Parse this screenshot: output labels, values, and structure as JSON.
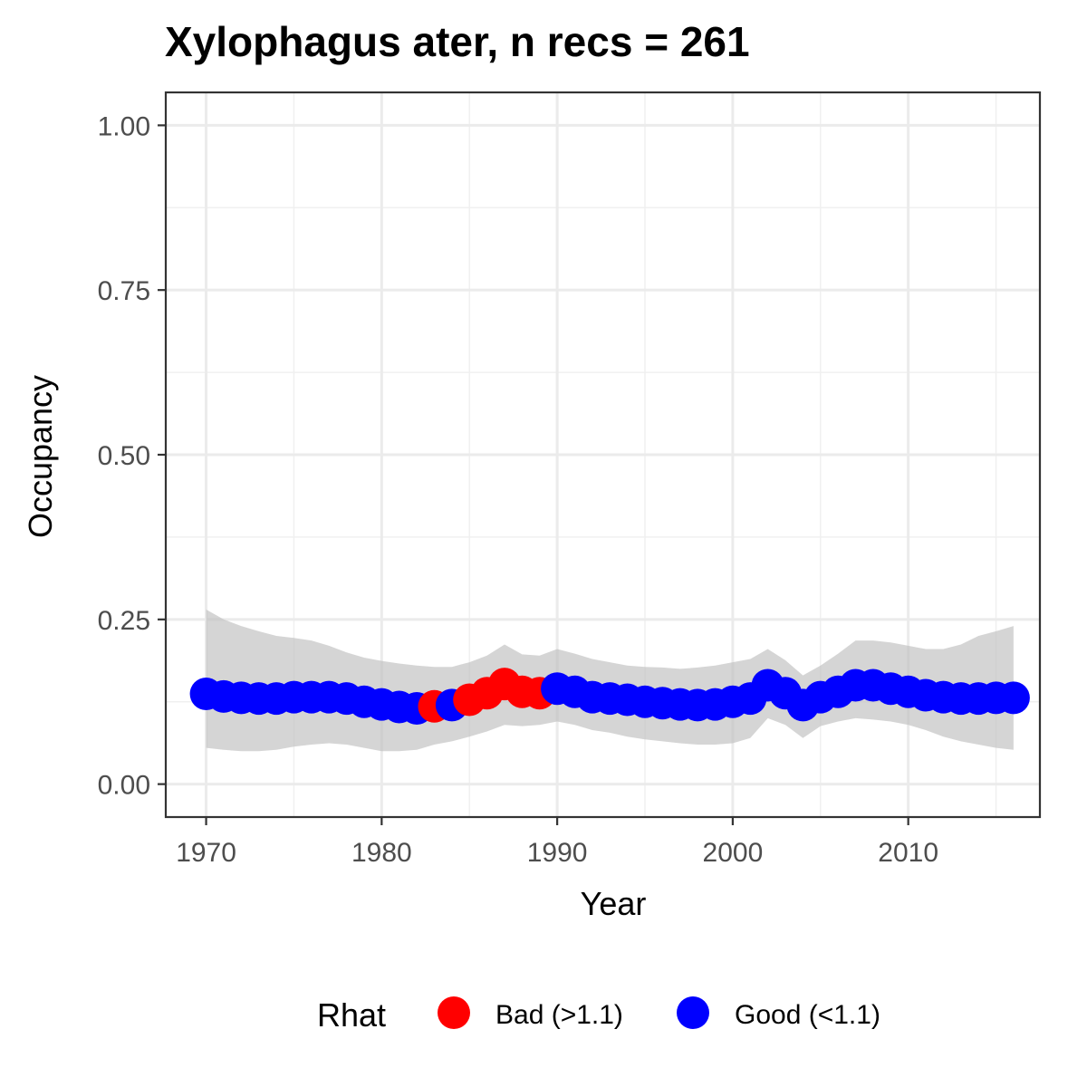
{
  "chart_data": {
    "type": "scatter",
    "title": "Xylophagus ater, n recs = 261",
    "xlabel": "Year",
    "ylabel": "Occupancy",
    "xlim": [
      1967.7,
      2017.5
    ],
    "ylim": [
      -0.05,
      1.05
    ],
    "x_ticks": [
      "1970",
      "1980",
      "1990",
      "2000",
      "2010"
    ],
    "y_ticks": [
      "0.00",
      "0.25",
      "0.50",
      "0.75",
      "1.00"
    ],
    "grid": true,
    "legend": {
      "title": "Rhat",
      "position": "bottom",
      "entries": [
        {
          "key": "bad",
          "label": "Bad (>1.1)",
          "color": "#ff0000"
        },
        {
          "key": "good",
          "label": "Good (<1.1)",
          "color": "#0000ff"
        }
      ]
    },
    "ribbon_color": "#bfbfbf",
    "points": [
      {
        "year": 1970,
        "occupancy": 0.137,
        "lower": 0.055,
        "upper": 0.265,
        "rhat": "good"
      },
      {
        "year": 1971,
        "occupancy": 0.133,
        "lower": 0.052,
        "upper": 0.25,
        "rhat": "good"
      },
      {
        "year": 1972,
        "occupancy": 0.131,
        "lower": 0.05,
        "upper": 0.24,
        "rhat": "good"
      },
      {
        "year": 1973,
        "occupancy": 0.13,
        "lower": 0.05,
        "upper": 0.232,
        "rhat": "good"
      },
      {
        "year": 1974,
        "occupancy": 0.13,
        "lower": 0.052,
        "upper": 0.225,
        "rhat": "good"
      },
      {
        "year": 1975,
        "occupancy": 0.132,
        "lower": 0.057,
        "upper": 0.222,
        "rhat": "good"
      },
      {
        "year": 1976,
        "occupancy": 0.132,
        "lower": 0.06,
        "upper": 0.218,
        "rhat": "good"
      },
      {
        "year": 1977,
        "occupancy": 0.132,
        "lower": 0.062,
        "upper": 0.21,
        "rhat": "good"
      },
      {
        "year": 1978,
        "occupancy": 0.13,
        "lower": 0.06,
        "upper": 0.2,
        "rhat": "good"
      },
      {
        "year": 1979,
        "occupancy": 0.125,
        "lower": 0.055,
        "upper": 0.192,
        "rhat": "good"
      },
      {
        "year": 1980,
        "occupancy": 0.121,
        "lower": 0.05,
        "upper": 0.187,
        "rhat": "good"
      },
      {
        "year": 1981,
        "occupancy": 0.117,
        "lower": 0.05,
        "upper": 0.183,
        "rhat": "good"
      },
      {
        "year": 1982,
        "occupancy": 0.115,
        "lower": 0.052,
        "upper": 0.18,
        "rhat": "good"
      },
      {
        "year": 1983,
        "occupancy": 0.118,
        "lower": 0.06,
        "upper": 0.178,
        "rhat": "bad"
      },
      {
        "year": 1984,
        "occupancy": 0.12,
        "lower": 0.065,
        "upper": 0.178,
        "rhat": "good"
      },
      {
        "year": 1985,
        "occupancy": 0.128,
        "lower": 0.072,
        "upper": 0.185,
        "rhat": "bad"
      },
      {
        "year": 1986,
        "occupancy": 0.138,
        "lower": 0.08,
        "upper": 0.195,
        "rhat": "bad"
      },
      {
        "year": 1987,
        "occupancy": 0.152,
        "lower": 0.09,
        "upper": 0.212,
        "rhat": "bad"
      },
      {
        "year": 1988,
        "occupancy": 0.14,
        "lower": 0.088,
        "upper": 0.197,
        "rhat": "bad"
      },
      {
        "year": 1989,
        "occupancy": 0.138,
        "lower": 0.09,
        "upper": 0.195,
        "rhat": "bad"
      },
      {
        "year": 1990,
        "occupancy": 0.145,
        "lower": 0.095,
        "upper": 0.205,
        "rhat": "good"
      },
      {
        "year": 1991,
        "occupancy": 0.14,
        "lower": 0.09,
        "upper": 0.198,
        "rhat": "good"
      },
      {
        "year": 1992,
        "occupancy": 0.132,
        "lower": 0.082,
        "upper": 0.19,
        "rhat": "good"
      },
      {
        "year": 1993,
        "occupancy": 0.13,
        "lower": 0.078,
        "upper": 0.185,
        "rhat": "good"
      },
      {
        "year": 1994,
        "occupancy": 0.128,
        "lower": 0.072,
        "upper": 0.18,
        "rhat": "good"
      },
      {
        "year": 1995,
        "occupancy": 0.125,
        "lower": 0.068,
        "upper": 0.178,
        "rhat": "good"
      },
      {
        "year": 1996,
        "occupancy": 0.123,
        "lower": 0.065,
        "upper": 0.177,
        "rhat": "good"
      },
      {
        "year": 1997,
        "occupancy": 0.121,
        "lower": 0.062,
        "upper": 0.175,
        "rhat": "good"
      },
      {
        "year": 1998,
        "occupancy": 0.12,
        "lower": 0.06,
        "upper": 0.177,
        "rhat": "good"
      },
      {
        "year": 1999,
        "occupancy": 0.121,
        "lower": 0.06,
        "upper": 0.18,
        "rhat": "good"
      },
      {
        "year": 2000,
        "occupancy": 0.125,
        "lower": 0.062,
        "upper": 0.185,
        "rhat": "good"
      },
      {
        "year": 2001,
        "occupancy": 0.13,
        "lower": 0.07,
        "upper": 0.19,
        "rhat": "good"
      },
      {
        "year": 2002,
        "occupancy": 0.15,
        "lower": 0.1,
        "upper": 0.205,
        "rhat": "good"
      },
      {
        "year": 2003,
        "occupancy": 0.138,
        "lower": 0.09,
        "upper": 0.188,
        "rhat": "good"
      },
      {
        "year": 2004,
        "occupancy": 0.12,
        "lower": 0.07,
        "upper": 0.165,
        "rhat": "good"
      },
      {
        "year": 2005,
        "occupancy": 0.132,
        "lower": 0.088,
        "upper": 0.18,
        "rhat": "good"
      },
      {
        "year": 2006,
        "occupancy": 0.14,
        "lower": 0.095,
        "upper": 0.198,
        "rhat": "good"
      },
      {
        "year": 2007,
        "occupancy": 0.15,
        "lower": 0.1,
        "upper": 0.218,
        "rhat": "good"
      },
      {
        "year": 2008,
        "occupancy": 0.15,
        "lower": 0.098,
        "upper": 0.218,
        "rhat": "good"
      },
      {
        "year": 2009,
        "occupancy": 0.145,
        "lower": 0.095,
        "upper": 0.215,
        "rhat": "good"
      },
      {
        "year": 2010,
        "occupancy": 0.14,
        "lower": 0.09,
        "upper": 0.21,
        "rhat": "good"
      },
      {
        "year": 2011,
        "occupancy": 0.135,
        "lower": 0.082,
        "upper": 0.205,
        "rhat": "good"
      },
      {
        "year": 2012,
        "occupancy": 0.132,
        "lower": 0.072,
        "upper": 0.205,
        "rhat": "good"
      },
      {
        "year": 2013,
        "occupancy": 0.13,
        "lower": 0.065,
        "upper": 0.212,
        "rhat": "good"
      },
      {
        "year": 2014,
        "occupancy": 0.13,
        "lower": 0.06,
        "upper": 0.225,
        "rhat": "good"
      },
      {
        "year": 2015,
        "occupancy": 0.131,
        "lower": 0.055,
        "upper": 0.232,
        "rhat": "good"
      },
      {
        "year": 2016,
        "occupancy": 0.131,
        "lower": 0.052,
        "upper": 0.24,
        "rhat": "good"
      }
    ]
  }
}
